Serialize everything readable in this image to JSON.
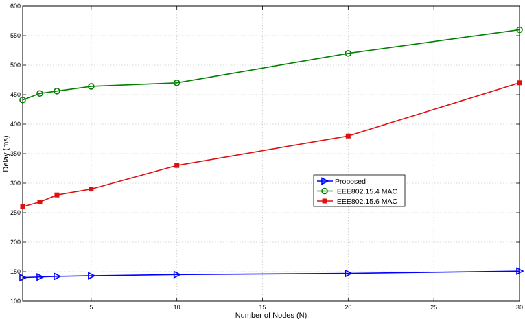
{
  "chart_data": {
    "type": "line",
    "title": "",
    "xlabel": "Number of Nodes (N)",
    "ylabel": "Delay (ms)",
    "xlim": [
      1,
      30
    ],
    "ylim": [
      100,
      600
    ],
    "xticks": [
      5,
      10,
      15,
      20,
      25,
      30
    ],
    "yticks": [
      100,
      150,
      200,
      250,
      300,
      350,
      400,
      450,
      500,
      550,
      600
    ],
    "grid": true,
    "legend_position": "center-right",
    "x": [
      1,
      2,
      3,
      5,
      10,
      20,
      30
    ],
    "series": [
      {
        "name": "Proposed",
        "color": "#0000ff",
        "marker": "triangle-right",
        "values": [
          140,
          141,
          142,
          143,
          145,
          147,
          151
        ]
      },
      {
        "name": "IEEE802.15.4 MAC",
        "color": "#007f00",
        "marker": "circle",
        "values": [
          441,
          452,
          456,
          464,
          470,
          520,
          560
        ]
      },
      {
        "name": "IEEE802.15.6 MAC",
        "color": "#dd1111",
        "marker": "square",
        "values": [
          260,
          268,
          280,
          290,
          330,
          380,
          470
        ]
      }
    ]
  }
}
